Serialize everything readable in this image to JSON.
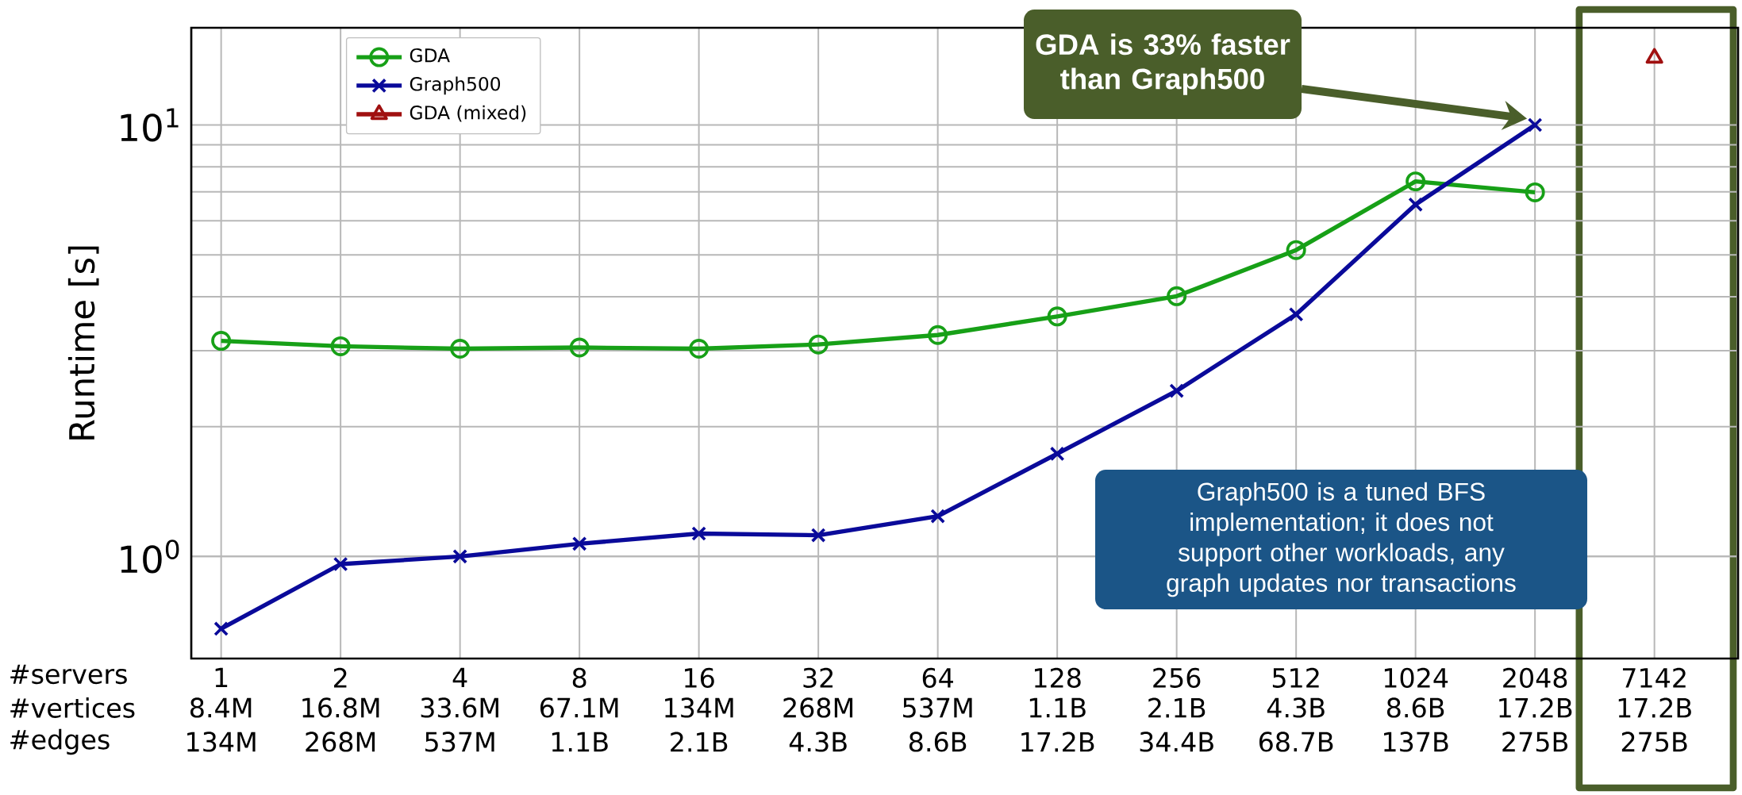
{
  "chart_data": {
    "type": "line",
    "ylabel": "Runtime [s]",
    "categories": [
      "1",
      "2",
      "4",
      "8",
      "16",
      "32",
      "64",
      "128",
      "256",
      "512",
      "1024",
      "2048",
      "7142"
    ],
    "series": [
      {
        "name": "GDA",
        "color": "#17a017",
        "marker": "circle",
        "values": [
          3.16,
          3.07,
          3.03,
          3.05,
          3.03,
          3.1,
          3.26,
          3.6,
          4.01,
          5.13,
          7.4,
          6.98,
          null
        ]
      },
      {
        "name": "Graph500",
        "color": "#0a0a9a",
        "marker": "cross",
        "values": [
          0.68,
          0.96,
          1.0,
          1.07,
          1.13,
          1.12,
          1.24,
          1.73,
          2.42,
          3.64,
          6.54,
          10.0,
          null
        ]
      },
      {
        "name": "GDA (mixed)",
        "color": "#a01010",
        "marker": "triangle",
        "values": [
          null,
          null,
          null,
          null,
          null,
          null,
          null,
          null,
          null,
          null,
          null,
          null,
          14.3
        ]
      }
    ],
    "log": "y",
    "ylim": [
      0.58,
      16.8
    ],
    "yticks": [
      {
        "value": 1,
        "label": "10$^{0}$"
      },
      {
        "value": 10,
        "label": "10$^{1}$"
      }
    ],
    "grid": true,
    "legend": "top left",
    "line_style": "solid",
    "annotations": [
      "GDA is 33% faster than Graph500",
      "Graph500 is a tuned BFS implementation; it does not support other workloads, any graph updates nor transactions",
      "#servers",
      "#vertices",
      "#edges",
      "8.4M",
      "16.8M",
      "33.6M",
      "67.1M",
      "134M",
      "268M",
      "537M",
      "1.1B",
      "2.1B",
      "4.3B",
      "8.6B",
      "17.2B",
      "17.2B",
      "134M",
      "268M",
      "537M",
      "1.1B",
      "2.1B",
      "4.3B",
      "8.6B",
      "17.2B",
      "34.4B",
      "68.7B",
      "137B",
      "275B",
      "275B"
    ]
  }
}
